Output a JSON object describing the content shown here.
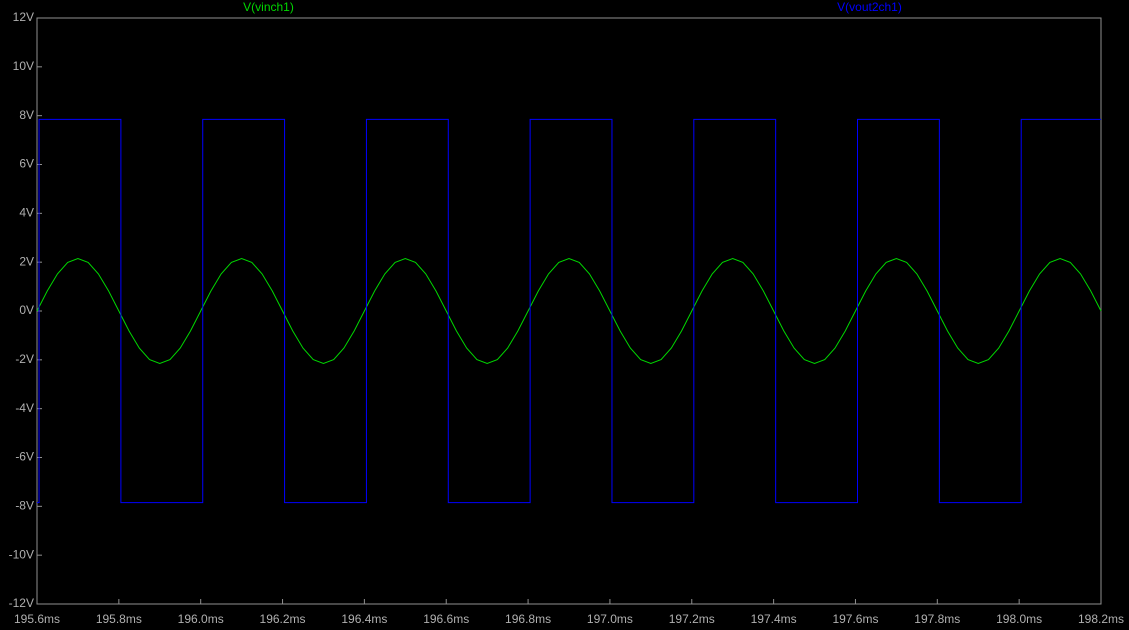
{
  "chart_data": {
    "type": "line",
    "xlim": [
      195.6,
      198.2
    ],
    "xticks": [
      {
        "value": 195.6,
        "label": "195.6ms"
      },
      {
        "value": 195.8,
        "label": "195.8ms"
      },
      {
        "value": 196.0,
        "label": "196.0ms"
      },
      {
        "value": 196.2,
        "label": "196.2ms"
      },
      {
        "value": 196.4,
        "label": "196.4ms"
      },
      {
        "value": 196.6,
        "label": "196.6ms"
      },
      {
        "value": 196.8,
        "label": "196.8ms"
      },
      {
        "value": 197.0,
        "label": "197.0ms"
      },
      {
        "value": 197.2,
        "label": "197.2ms"
      },
      {
        "value": 197.4,
        "label": "197.4ms"
      },
      {
        "value": 197.6,
        "label": "197.6ms"
      },
      {
        "value": 197.8,
        "label": "197.8ms"
      },
      {
        "value": 198.0,
        "label": "198.0ms"
      },
      {
        "value": 198.2,
        "label": "198.2ms"
      }
    ],
    "ylim": [
      -12,
      12
    ],
    "yticks": [
      {
        "value": 12,
        "label": "12V"
      },
      {
        "value": 10,
        "label": "10V"
      },
      {
        "value": 8,
        "label": "8V"
      },
      {
        "value": 6,
        "label": "6V"
      },
      {
        "value": 4,
        "label": "4V"
      },
      {
        "value": 2,
        "label": "2V"
      },
      {
        "value": 0,
        "label": "0V"
      },
      {
        "value": -2,
        "label": "-2V"
      },
      {
        "value": -4,
        "label": "-4V"
      },
      {
        "value": -6,
        "label": "-6V"
      },
      {
        "value": -8,
        "label": "-8V"
      },
      {
        "value": -10,
        "label": "-10V"
      },
      {
        "value": -12,
        "label": "-12V"
      }
    ],
    "series": [
      {
        "name": "V(vinch1)",
        "color": "#00d800",
        "x": [
          195.6,
          195.625,
          195.65,
          195.675,
          195.7,
          195.725,
          195.75,
          195.775,
          195.8,
          195.825,
          195.85,
          195.875,
          195.9,
          195.925,
          195.95,
          195.975,
          196,
          196.025,
          196.05,
          196.075,
          196.1,
          196.125,
          196.15,
          196.175,
          196.2,
          196.225,
          196.25,
          196.275,
          196.3,
          196.325,
          196.35,
          196.375,
          196.4,
          196.425,
          196.45,
          196.475,
          196.5,
          196.525,
          196.55,
          196.575,
          196.6,
          196.625,
          196.65,
          196.675,
          196.7,
          196.725,
          196.75,
          196.775,
          196.8,
          196.825,
          196.85,
          196.875,
          196.9,
          196.925,
          196.95,
          196.975,
          197,
          197.025,
          197.05,
          197.075,
          197.1,
          197.125,
          197.15,
          197.175,
          197.2,
          197.225,
          197.25,
          197.275,
          197.3,
          197.325,
          197.35,
          197.375,
          197.4,
          197.425,
          197.45,
          197.475,
          197.5,
          197.525,
          197.55,
          197.575,
          197.6,
          197.625,
          197.65,
          197.675,
          197.7,
          197.725,
          197.75,
          197.775,
          197.8,
          197.825,
          197.85,
          197.875,
          197.9,
          197.925,
          197.95,
          197.975,
          198,
          198.025,
          198.05,
          198.075,
          198.1,
          198.125,
          198.15,
          198.175,
          198.2
        ],
        "values": [
          0,
          0.82,
          1.52,
          1.99,
          2.15,
          1.99,
          1.52,
          0.82,
          0,
          -0.82,
          -1.52,
          -1.99,
          -2.15,
          -1.99,
          -1.52,
          -0.82,
          0,
          0.82,
          1.52,
          1.99,
          2.15,
          1.99,
          1.52,
          0.82,
          0,
          -0.82,
          -1.52,
          -1.99,
          -2.15,
          -1.99,
          -1.52,
          -0.82,
          0,
          0.82,
          1.52,
          1.99,
          2.15,
          1.99,
          1.52,
          0.82,
          0,
          -0.82,
          -1.52,
          -1.99,
          -2.15,
          -1.99,
          -1.52,
          -0.82,
          0,
          0.82,
          1.52,
          1.99,
          2.15,
          1.99,
          1.52,
          0.82,
          0,
          -0.82,
          -1.52,
          -1.99,
          -2.15,
          -1.99,
          -1.52,
          -0.82,
          0,
          0.82,
          1.52,
          1.99,
          2.15,
          1.99,
          1.52,
          0.82,
          0,
          -0.82,
          -1.52,
          -1.99,
          -2.15,
          -1.99,
          -1.52,
          -0.82,
          0,
          0.82,
          1.52,
          1.99,
          2.15,
          1.99,
          1.52,
          0.82,
          0,
          -0.82,
          -1.52,
          -1.99,
          -2.15,
          -1.99,
          -1.52,
          -0.82,
          0,
          0.82,
          1.52,
          1.99,
          2.15,
          1.99,
          1.52,
          0.82,
          0
        ]
      },
      {
        "name": "V(vout2ch1)",
        "color": "#0000ff",
        "x": [
          195.6,
          195.605,
          195.605,
          195.805,
          195.805,
          196.005,
          196.005,
          196.205,
          196.205,
          196.405,
          196.405,
          196.605,
          196.605,
          196.805,
          196.805,
          197.005,
          197.005,
          197.205,
          197.205,
          197.405,
          197.405,
          197.605,
          197.605,
          197.805,
          197.805,
          198.005,
          198.005,
          198.2
        ],
        "values": [
          -7.85,
          -7.85,
          7.85,
          7.85,
          -7.85,
          -7.85,
          7.85,
          7.85,
          -7.85,
          -7.85,
          7.85,
          7.85,
          -7.85,
          -7.85,
          7.85,
          7.85,
          -7.85,
          -7.85,
          7.85,
          7.85,
          -7.85,
          -7.85,
          7.85,
          7.85,
          -7.85,
          -7.85,
          7.85,
          7.85
        ]
      }
    ]
  }
}
